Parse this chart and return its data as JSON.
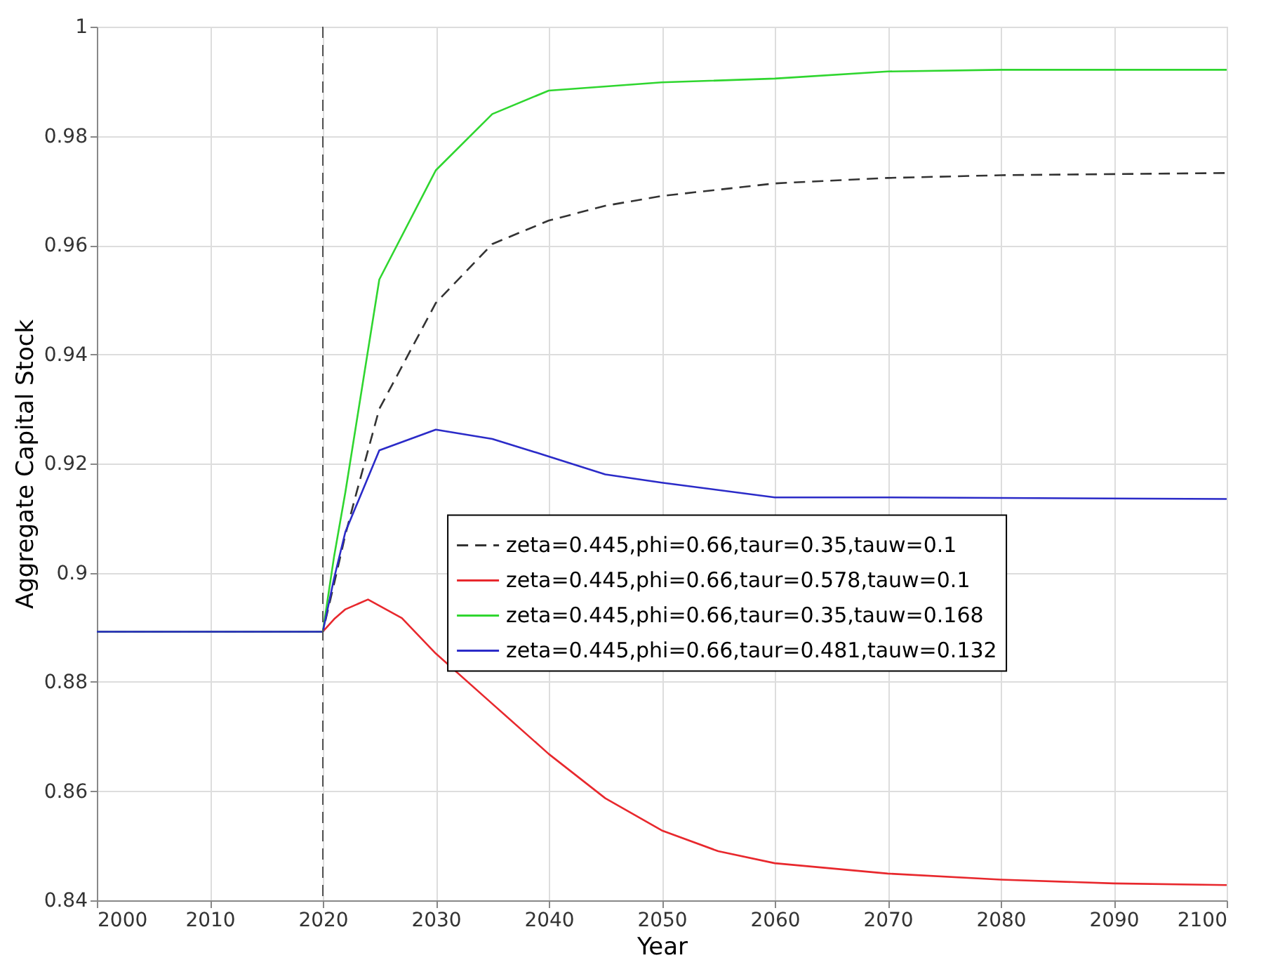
{
  "chart_data": {
    "type": "line",
    "xlabel": "Year",
    "ylabel": "Aggregate Capital Stock",
    "xlim": [
      2000,
      2100
    ],
    "xticks": [
      2000,
      2010,
      2020,
      2030,
      2040,
      2050,
      2060,
      2070,
      2080,
      2090,
      2100
    ],
    "ylim": [
      0.84,
      1
    ],
    "yticks": [
      0.84,
      0.86,
      0.88,
      0.9,
      0.92,
      0.94,
      0.96,
      0.98,
      1
    ],
    "grid": true,
    "legend": "right",
    "marker": "none",
    "ref_lines": [
      {
        "axis": "x",
        "value": 2020,
        "color": "#555555",
        "line_style": "dashed"
      }
    ],
    "series": [
      {
        "name": "zeta=0.445,phi=0.66,taur=0.35,tauw=0.1",
        "color": "#333333",
        "line_style": "dashed",
        "x": [
          2000,
          2020,
          2021,
          2022,
          2023,
          2025,
          2030,
          2035,
          2040,
          2045,
          2050,
          2060,
          2070,
          2080,
          2100
        ],
        "values": [
          0.8892,
          0.8892,
          0.898,
          0.907,
          0.9148,
          0.93,
          0.9494,
          0.9602,
          0.9645,
          0.9672,
          0.969,
          0.9713,
          0.9723,
          0.9728,
          0.9732
        ]
      },
      {
        "name": "zeta=0.445,phi=0.66,taur=0.578,tauw=0.1",
        "color": "#e8282d",
        "line_style": "solid",
        "x": [
          2000,
          2020,
          2021,
          2022,
          2024,
          2027,
          2030,
          2035,
          2040,
          2045,
          2050,
          2055,
          2060,
          2070,
          2080,
          2090,
          2100
        ],
        "values": [
          0.8892,
          0.8892,
          0.8915,
          0.8933,
          0.8951,
          0.8917,
          0.8852,
          0.876,
          0.8668,
          0.8587,
          0.8528,
          0.849,
          0.8468,
          0.8449,
          0.8438,
          0.8431,
          0.8428
        ]
      },
      {
        "name": "zeta=0.445,phi=0.66,taur=0.35,tauw=0.168",
        "color": "#2fd62f",
        "line_style": "solid",
        "x": [
          2000,
          2020,
          2021,
          2022,
          2025,
          2030,
          2035,
          2040,
          2050,
          2060,
          2070,
          2080,
          2100
        ],
        "values": [
          0.8892,
          0.8892,
          0.903,
          0.9148,
          0.9537,
          0.9737,
          0.984,
          0.9883,
          0.9898,
          0.9905,
          0.9918,
          0.9921,
          0.9921
        ]
      },
      {
        "name": "zeta=0.445,phi=0.66,taur=0.481,tauw=0.132",
        "color": "#2b2bc8",
        "line_style": "solid",
        "x": [
          2000,
          2020,
          2021,
          2022,
          2025,
          2030,
          2035,
          2040,
          2045,
          2050,
          2060,
          2070,
          2100
        ],
        "values": [
          0.8892,
          0.8892,
          0.899,
          0.9075,
          0.9224,
          0.9262,
          0.9245,
          0.9213,
          0.918,
          0.9165,
          0.9138,
          0.9138,
          0.9135
        ]
      }
    ]
  }
}
